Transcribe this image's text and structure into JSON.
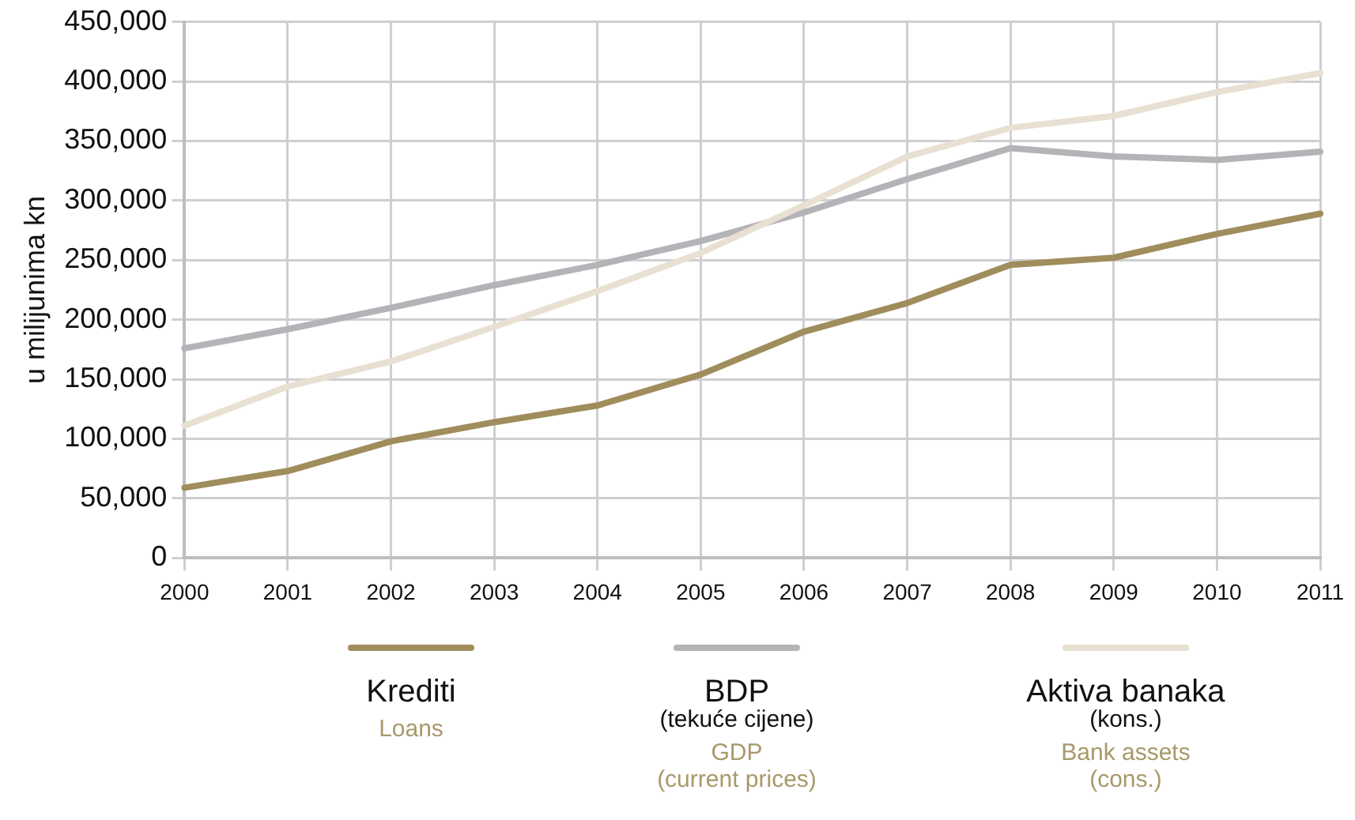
{
  "chart_data": {
    "type": "line",
    "ylabel": "u milijunima kn",
    "categories": [
      "2000",
      "2001",
      "2002",
      "2003",
      "2004",
      "2005",
      "2006",
      "2007",
      "2008",
      "2009",
      "2010",
      "2011"
    ],
    "series": [
      {
        "name": "Krediti",
        "color": "#a08d5c",
        "values": [
          59000,
          73000,
          98000,
          114000,
          128000,
          154000,
          190000,
          214000,
          246000,
          252000,
          272000,
          289000
        ]
      },
      {
        "name": "BDP\n(tekuće cijene)",
        "color": "#b3b3b8",
        "values": [
          176000,
          192000,
          210000,
          229000,
          246000,
          266000,
          290000,
          318000,
          344000,
          337000,
          334000,
          341000
        ]
      },
      {
        "name": "Aktiva banaka\n(kons.)",
        "color": "#e8e0d2",
        "values": [
          111000,
          144000,
          165000,
          194000,
          224000,
          256000,
          296000,
          337000,
          361000,
          371000,
          391000,
          407000
        ]
      }
    ],
    "annotations": [
      "Loans",
      "GDP\n(current prices)",
      "Bank assets\n(cons.)"
    ],
    "ylim": [
      0,
      450000
    ],
    "yticks": [
      0,
      {
        "value": 50000,
        "label": "50,000"
      },
      {
        "value": 100000,
        "label": "100,000"
      },
      {
        "value": 150000,
        "label": "150,000"
      },
      {
        "value": 200000,
        "label": "200,000"
      },
      {
        "value": 250000,
        "label": "250,000"
      },
      {
        "value": 300000,
        "label": "300,000"
      },
      {
        "value": 350000,
        "label": "350,000"
      },
      {
        "value": 400000,
        "label": "400,000"
      },
      {
        "value": 450000,
        "label": "450,000"
      }
    ],
    "grid": true,
    "legend": "bottom",
    "marker": "none",
    "line_style": "solid"
  }
}
